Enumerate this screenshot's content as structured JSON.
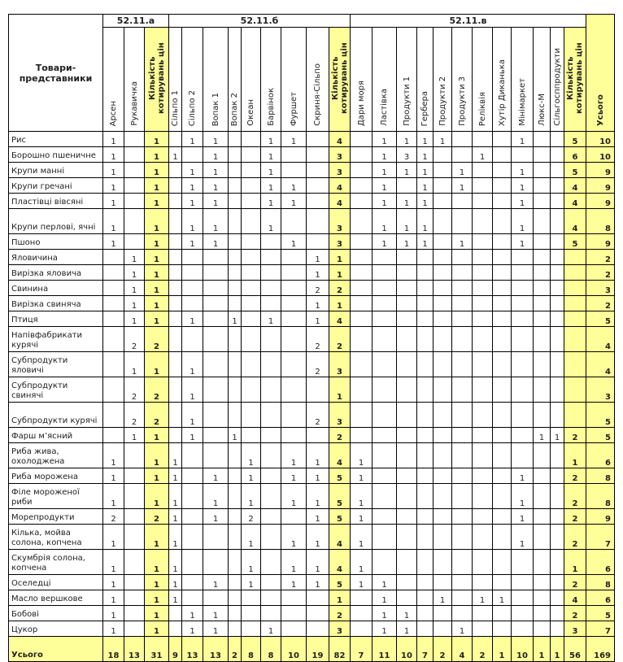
{
  "header": {
    "name_col": "Товари-представники",
    "groups": [
      "52.11.а",
      "52.11.б",
      "52.11.в"
    ],
    "total": "Усього",
    "columns": [
      "Арсен",
      "Рукавичка",
      "Кількість котирувань цін",
      "Сільпо 1",
      "Сільпо 2",
      "Вопак  1",
      "Вопак  2",
      "Океан",
      "Барвінок",
      "Фуршет",
      "Скриня-Сільпо",
      "Кількість котирувань цін",
      "Дари моря",
      "Ластівка",
      "Продукти  1",
      "Гербера",
      "Продукти  2",
      "Продукти  3",
      "Реліквія",
      "Хутір Диканька",
      "Мінімаркет",
      "Люкс-М",
      "Сільгосппродукти",
      "Кількість котирувань цін"
    ]
  },
  "highlight_color": "#ffff99",
  "rows": [
    {
      "name": "Рис",
      "values": [
        "1",
        "",
        "1",
        "",
        "1",
        "1",
        "",
        "",
        "1",
        "1",
        "",
        "4",
        "",
        "1",
        "1",
        "1",
        "1",
        "",
        "",
        "",
        "1",
        "",
        "",
        "5",
        "10"
      ]
    },
    {
      "name": "Борошно пшеничне",
      "values": [
        "1",
        "",
        "1",
        "1",
        "",
        "1",
        "",
        "",
        "1",
        "",
        "",
        "3",
        "",
        "1",
        "3",
        "1",
        "",
        "",
        "1",
        "",
        "",
        "",
        "",
        "6",
        "10"
      ]
    },
    {
      "name": "Крупи манні",
      "values": [
        "1",
        "",
        "1",
        "",
        "1",
        "1",
        "",
        "",
        "1",
        "",
        "",
        "3",
        "",
        "1",
        "1",
        "1",
        "",
        "1",
        "",
        "",
        "1",
        "",
        "",
        "5",
        "9"
      ]
    },
    {
      "name": "Крупи гречані",
      "values": [
        "1",
        "",
        "1",
        "",
        "1",
        "1",
        "",
        "",
        "1",
        "1",
        "",
        "4",
        "",
        "1",
        "",
        "1",
        "",
        "1",
        "",
        "",
        "1",
        "",
        "",
        "4",
        "9"
      ]
    },
    {
      "name": "Пластівці вівсяні",
      "values": [
        "1",
        "",
        "1",
        "",
        "1",
        "1",
        "",
        "",
        "1",
        "1",
        "",
        "4",
        "",
        "1",
        "1",
        "1",
        "",
        "",
        "",
        "",
        "1",
        "",
        "",
        "4",
        "9"
      ]
    },
    {
      "name": "Крупи перлові, ячні",
      "values": [
        "1",
        "",
        "1",
        "",
        "1",
        "1",
        "",
        "",
        "1",
        "",
        "",
        "3",
        "",
        "1",
        "1",
        "1",
        "",
        "",
        "",
        "",
        "1",
        "",
        "",
        "4",
        "8"
      ]
    },
    {
      "name": "Пшоно",
      "values": [
        "1",
        "",
        "1",
        "",
        "1",
        "1",
        "",
        "",
        "",
        "1",
        "",
        "3",
        "",
        "1",
        "1",
        "1",
        "",
        "1",
        "",
        "",
        "1",
        "",
        "",
        "5",
        "9"
      ]
    },
    {
      "name": "Яловичина",
      "values": [
        "",
        "1",
        "1",
        "",
        "",
        "",
        "",
        "",
        "",
        "",
        "1",
        "1",
        "",
        "",
        "",
        "",
        "",
        "",
        "",
        "",
        "",
        "",
        "",
        "",
        "2"
      ]
    },
    {
      "name": "Вирізка яловича",
      "values": [
        "",
        "1",
        "1",
        "",
        "",
        "",
        "",
        "",
        "",
        "",
        "1",
        "1",
        "",
        "",
        "",
        "",
        "",
        "",
        "",
        "",
        "",
        "",
        "",
        "",
        "2"
      ]
    },
    {
      "name": "Свинина",
      "values": [
        "",
        "1",
        "1",
        "",
        "",
        "",
        "",
        "",
        "",
        "",
        "2",
        "2",
        "",
        "",
        "",
        "",
        "",
        "",
        "",
        "",
        "",
        "",
        "",
        "",
        "3"
      ]
    },
    {
      "name": "Вирізка свиняча",
      "values": [
        "",
        "1",
        "1",
        "",
        "",
        "",
        "",
        "",
        "",
        "",
        "1",
        "1",
        "",
        "",
        "",
        "",
        "",
        "",
        "",
        "",
        "",
        "",
        "",
        "",
        "2"
      ]
    },
    {
      "name": "Птиця",
      "values": [
        "",
        "1",
        "1",
        "",
        "1",
        "",
        "1",
        "",
        "1",
        "",
        "1",
        "4",
        "",
        "",
        "",
        "",
        "",
        "",
        "",
        "",
        "",
        "",
        "",
        "",
        "5"
      ]
    },
    {
      "name": "Напівфабрикати курячі",
      "values": [
        "",
        "2",
        "2",
        "",
        "",
        "",
        "",
        "",
        "",
        "",
        "2",
        "2",
        "",
        "",
        "",
        "",
        "",
        "",
        "",
        "",
        "",
        "",
        "",
        "",
        "4"
      ]
    },
    {
      "name": "Субпродукти яловичі",
      "values": [
        "",
        "1",
        "1",
        "",
        "1",
        "",
        "",
        "",
        "",
        "",
        "2",
        "3",
        "",
        "",
        "",
        "",
        "",
        "",
        "",
        "",
        "",
        "",
        "",
        "",
        "4"
      ]
    },
    {
      "name": "Субпродукти свинячі",
      "values": [
        "",
        "2",
        "2",
        "",
        "1",
        "",
        "",
        "",
        "",
        "",
        "",
        "1",
        "",
        "",
        "",
        "",
        "",
        "",
        "",
        "",
        "",
        "",
        "",
        "",
        "3"
      ]
    },
    {
      "name": "Субпродукти курячі",
      "values": [
        "",
        "2",
        "2",
        "",
        "1",
        "",
        "",
        "",
        "",
        "",
        "2",
        "3",
        "",
        "",
        "",
        "",
        "",
        "",
        "",
        "",
        "",
        "",
        "",
        "",
        "5"
      ]
    },
    {
      "name": "Фарш м’ясний",
      "values": [
        "",
        "1",
        "1",
        "",
        "1",
        "",
        "1",
        "",
        "",
        "",
        "",
        "2",
        "",
        "",
        "",
        "",
        "",
        "",
        "",
        "",
        "",
        "1",
        "1",
        "2",
        "5"
      ]
    },
    {
      "name": "Риба жива, охолоджена",
      "values": [
        "1",
        "",
        "1",
        "1",
        "",
        "",
        "",
        "1",
        "",
        "1",
        "1",
        "4",
        "1",
        "",
        "",
        "",
        "",
        "",
        "",
        "",
        "",
        "",
        "",
        "1",
        "6"
      ]
    },
    {
      "name": "Риба морожена",
      "values": [
        "1",
        "",
        "1",
        "1",
        "",
        "1",
        "",
        "1",
        "",
        "1",
        "1",
        "5",
        "1",
        "",
        "",
        "",
        "",
        "",
        "",
        "",
        "1",
        "",
        "",
        "2",
        "8"
      ]
    },
    {
      "name": "Філе мороженої риби",
      "values": [
        "1",
        "",
        "1",
        "1",
        "",
        "1",
        "",
        "1",
        "",
        "1",
        "1",
        "5",
        "1",
        "",
        "",
        "",
        "",
        "",
        "",
        "",
        "1",
        "",
        "",
        "2",
        "8"
      ]
    },
    {
      "name": "Морепродукти",
      "values": [
        "2",
        "",
        "2",
        "1",
        "",
        "1",
        "",
        "2",
        "",
        "",
        "1",
        "5",
        "1",
        "",
        "",
        "",
        "",
        "",
        "",
        "",
        "1",
        "",
        "",
        "2",
        "9"
      ]
    },
    {
      "name": "Кілька, мойва солона, копчена",
      "values": [
        "1",
        "",
        "1",
        "1",
        "",
        "",
        "",
        "1",
        "",
        "1",
        "1",
        "4",
        "1",
        "",
        "",
        "",
        "",
        "",
        "",
        "",
        "1",
        "",
        "",
        "2",
        "7"
      ]
    },
    {
      "name": "Скумбрія солона, копчена",
      "values": [
        "1",
        "",
        "1",
        "1",
        "",
        "",
        "",
        "1",
        "",
        "1",
        "1",
        "4",
        "1",
        "",
        "",
        "",
        "",
        "",
        "",
        "",
        "",
        "",
        "",
        "1",
        "6"
      ]
    },
    {
      "name": "Оселедці",
      "values": [
        "1",
        "",
        "1",
        "1",
        "",
        "1",
        "",
        "1",
        "",
        "1",
        "1",
        "5",
        "1",
        "1",
        "",
        "",
        "",
        "",
        "",
        "",
        "",
        "",
        "",
        "2",
        "8"
      ]
    },
    {
      "name": "Масло вершкове",
      "values": [
        "1",
        "",
        "1",
        "1",
        "",
        "",
        "",
        "",
        "",
        "",
        "",
        "1",
        "",
        "1",
        "",
        "",
        "1",
        "",
        "1",
        "1",
        "",
        "",
        "",
        "4",
        "6"
      ]
    },
    {
      "name": "Бобові",
      "values": [
        "1",
        "",
        "1",
        "",
        "1",
        "1",
        "",
        "",
        "",
        "",
        "",
        "2",
        "",
        "1",
        "1",
        "",
        "",
        "",
        "",
        "",
        "",
        "",
        "",
        "2",
        "5"
      ]
    },
    {
      "name": "Цукор",
      "values": [
        "1",
        "",
        "1",
        "",
        "1",
        "1",
        "",
        "",
        "1",
        "",
        "",
        "3",
        "",
        "1",
        "1",
        "",
        "",
        "1",
        "",
        "",
        "",
        "",
        "",
        "3",
        "7"
      ]
    }
  ],
  "totals": {
    "label": "Усього",
    "values": [
      "18",
      "13",
      "31",
      "9",
      "13",
      "13",
      "2",
      "8",
      "8",
      "10",
      "19",
      "82",
      "7",
      "11",
      "10",
      "7",
      "2",
      "4",
      "2",
      "1",
      "10",
      "1",
      "1",
      "56",
      "169"
    ]
  }
}
